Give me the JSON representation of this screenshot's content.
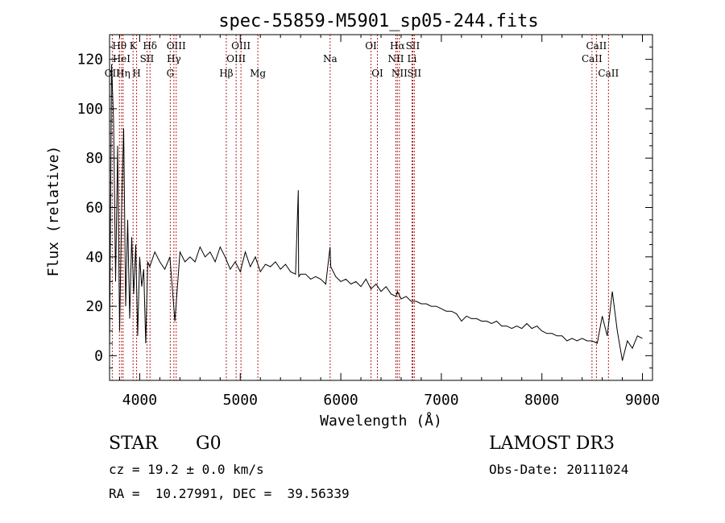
{
  "chart_data": {
    "type": "line",
    "title": "spec-55859-M5901_sp05-244.fits",
    "xlabel": "Wavelength (Å)",
    "ylabel": "Flux (relative)",
    "xlim": [
      3700,
      9100
    ],
    "ylim": [
      -10,
      130
    ],
    "xticks": [
      4000,
      5000,
      6000,
      7000,
      8000,
      9000
    ],
    "yticks": [
      0,
      20,
      40,
      60,
      80,
      100,
      120
    ],
    "series": [
      {
        "name": "flux",
        "x": [
          3700,
          3720,
          3740,
          3760,
          3780,
          3800,
          3820,
          3840,
          3860,
          3880,
          3900,
          3920,
          3940,
          3960,
          3980,
          4000,
          4020,
          4040,
          4060,
          4080,
          4100,
          4150,
          4200,
          4250,
          4300,
          4350,
          4400,
          4450,
          4500,
          4550,
          4600,
          4650,
          4700,
          4750,
          4800,
          4850,
          4900,
          4950,
          5000,
          5050,
          5100,
          5150,
          5200,
          5250,
          5300,
          5350,
          5400,
          5450,
          5500,
          5550,
          5577,
          5580,
          5583,
          5600,
          5650,
          5700,
          5750,
          5800,
          5850,
          5893,
          5900,
          5950,
          6000,
          6050,
          6100,
          6150,
          6200,
          6250,
          6300,
          6350,
          6400,
          6450,
          6500,
          6550,
          6563,
          6600,
          6650,
          6700,
          6750,
          6800,
          6850,
          6900,
          6950,
          7000,
          7050,
          7100,
          7150,
          7200,
          7250,
          7300,
          7350,
          7400,
          7450,
          7500,
          7550,
          7600,
          7650,
          7700,
          7750,
          7800,
          7850,
          7900,
          7950,
          8000,
          8050,
          8100,
          8150,
          8200,
          8250,
          8300,
          8350,
          8400,
          8450,
          8500,
          8550,
          8600,
          8650,
          8700,
          8750,
          8800,
          8850,
          8900,
          8950,
          9000
        ],
        "values": [
          2,
          118,
          95,
          30,
          85,
          10,
          60,
          92,
          20,
          55,
          15,
          48,
          25,
          45,
          8,
          40,
          28,
          35,
          5,
          38,
          36,
          42,
          38,
          35,
          40,
          14,
          42,
          38,
          40,
          38,
          44,
          40,
          42,
          38,
          44,
          40,
          35,
          38,
          34,
          42,
          36,
          40,
          34,
          37,
          36,
          38,
          35,
          37,
          34,
          33,
          67,
          34,
          32,
          33,
          33,
          31,
          32,
          31,
          29,
          44,
          36,
          32,
          30,
          31,
          29,
          30,
          28,
          31,
          27,
          29,
          26,
          28,
          25,
          24,
          26,
          23,
          24,
          22,
          22,
          21,
          21,
          20,
          20,
          19,
          18,
          18,
          17,
          14,
          16,
          15,
          15,
          14,
          14,
          13,
          14,
          12,
          12,
          11,
          12,
          11,
          13,
          11,
          12,
          10,
          9,
          9,
          8,
          8,
          6,
          7,
          6,
          7,
          6,
          6,
          5,
          16,
          8,
          26,
          10,
          -2,
          6,
          3,
          8,
          7
        ]
      }
    ],
    "line_markers": [
      {
        "label": "OII",
        "wl": 3727,
        "row": 3
      },
      {
        "label": "Hθ",
        "wl": 3798,
        "row": 1
      },
      {
        "label": "HeI",
        "wl": 3819,
        "row": 2
      },
      {
        "label": "Hη",
        "wl": 3835,
        "row": 3
      },
      {
        "label": "K",
        "wl": 3934,
        "row": 1
      },
      {
        "label": "H",
        "wl": 3969,
        "row": 3
      },
      {
        "label": "SII",
        "wl": 4072,
        "row": 2
      },
      {
        "label": "Hδ",
        "wl": 4102,
        "row": 1
      },
      {
        "label": "G",
        "wl": 4304,
        "row": 3
      },
      {
        "label": "Hγ",
        "wl": 4340,
        "row": 2
      },
      {
        "label": "OIII",
        "wl": 4363,
        "row": 1
      },
      {
        "label": "Hβ",
        "wl": 4861,
        "row": 3
      },
      {
        "label": "OIII",
        "wl": 4959,
        "row": 2
      },
      {
        "label": "OIII",
        "wl": 5007,
        "row": 1
      },
      {
        "label": "Mg",
        "wl": 5175,
        "row": 3
      },
      {
        "label": "Na",
        "wl": 5894,
        "row": 2
      },
      {
        "label": "OI",
        "wl": 6300,
        "row": 1
      },
      {
        "label": "OI",
        "wl": 6364,
        "row": 3
      },
      {
        "label": "NII",
        "wl": 6548,
        "row": 2
      },
      {
        "label": "Hα",
        "wl": 6563,
        "row": 1
      },
      {
        "label": "NII",
        "wl": 6583,
        "row": 3
      },
      {
        "label": "Li",
        "wl": 6708,
        "row": 2
      },
      {
        "label": "SII",
        "wl": 6716,
        "row": 1
      },
      {
        "label": "SII",
        "wl": 6731,
        "row": 3
      },
      {
        "label": "CaII",
        "wl": 8498,
        "row": 2
      },
      {
        "label": "CaII",
        "wl": 8542,
        "row": 1
      },
      {
        "label": "CaII",
        "wl": 8662,
        "row": 3
      }
    ]
  },
  "info": {
    "object_class": "STAR",
    "subclass": "G0",
    "survey": "LAMOST DR3",
    "cz": "cz = 19.2 ± 0.0 km/s",
    "obs_date": "Obs-Date: 20111024",
    "coords": "RA =  10.27991, DEC =  39.56339"
  }
}
